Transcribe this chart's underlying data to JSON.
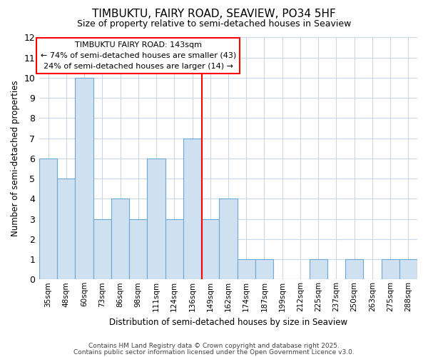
{
  "title1": "TIMBUKTU, FAIRY ROAD, SEAVIEW, PO34 5HF",
  "title2": "Size of property relative to semi-detached houses in Seaview",
  "xlabel": "Distribution of semi-detached houses by size in Seaview",
  "ylabel": "Number of semi-detached properties",
  "bins": [
    "35sqm",
    "48sqm",
    "60sqm",
    "73sqm",
    "86sqm",
    "98sqm",
    "111sqm",
    "124sqm",
    "136sqm",
    "149sqm",
    "162sqm",
    "174sqm",
    "187sqm",
    "199sqm",
    "212sqm",
    "225sqm",
    "237sqm",
    "250sqm",
    "263sqm",
    "275sqm",
    "288sqm"
  ],
  "values": [
    6,
    5,
    10,
    3,
    4,
    3,
    6,
    3,
    7,
    3,
    4,
    1,
    1,
    0,
    0,
    1,
    0,
    1,
    0,
    1,
    1
  ],
  "bar_color": "#cfe0f0",
  "bar_edge_color": "#6aaad4",
  "red_line_x": 8.54,
  "annotation_title": "TIMBUKTU FAIRY ROAD: 143sqm",
  "annotation_line1": "← 74% of semi-detached houses are smaller (43)",
  "annotation_line2": "24% of semi-detached houses are larger (14) →",
  "ylim": [
    0,
    12
  ],
  "yticks": [
    0,
    1,
    2,
    3,
    4,
    5,
    6,
    7,
    8,
    9,
    10,
    11,
    12
  ],
  "bg_color": "#ffffff",
  "grid_color": "#c8d8e8",
  "footer1": "Contains HM Land Registry data © Crown copyright and database right 2025.",
  "footer2": "Contains public sector information licensed under the Open Government Licence v3.0."
}
